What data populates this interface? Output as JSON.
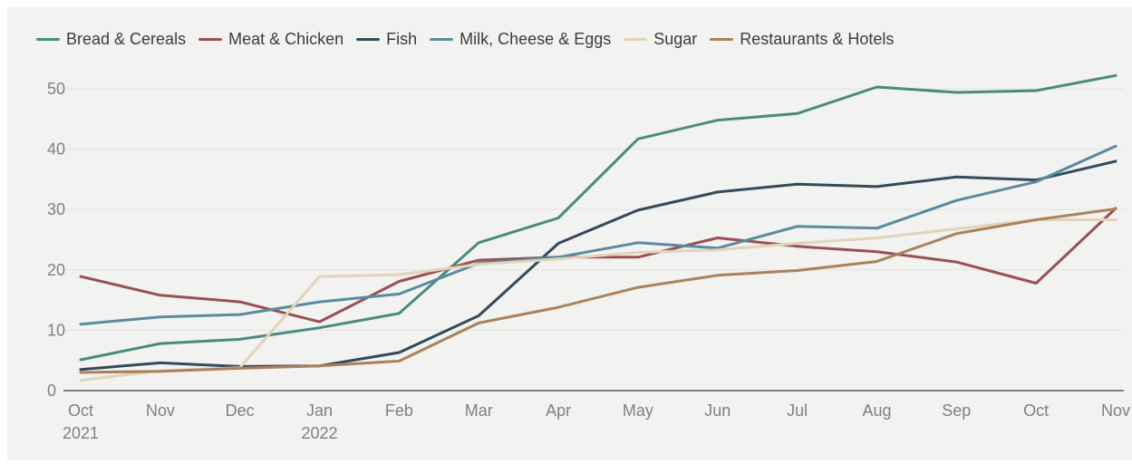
{
  "chart_data": {
    "type": "line",
    "title": "",
    "xlabel": "",
    "ylabel": "",
    "ylim": [
      0,
      53
    ],
    "yticks": [
      0,
      10,
      20,
      30,
      40,
      50
    ],
    "grid": true,
    "legend_position": "top-left",
    "categories": [
      "Oct",
      "Nov",
      "Dec",
      "Jan",
      "Feb",
      "Mar",
      "Apr",
      "May",
      "Jun",
      "Jul",
      "Aug",
      "Sep",
      "Oct",
      "Nov"
    ],
    "category_sublabels": [
      "2021",
      "",
      "",
      "2022",
      "",
      "",
      "",
      "",
      "",
      "",
      "",
      "",
      "",
      ""
    ],
    "series": [
      {
        "name": "Bread & Cereals",
        "color": "#4a8a7e",
        "values": [
          5.1,
          7.8,
          8.5,
          10.4,
          12.8,
          24.5,
          28.6,
          41.7,
          44.8,
          45.9,
          50.3,
          49.4,
          49.7,
          52.2
        ]
      },
      {
        "name": "Meat & Chicken",
        "color": "#9a4f55",
        "values": [
          18.9,
          15.8,
          14.7,
          11.4,
          18.1,
          21.6,
          22.1,
          22.1,
          25.3,
          23.9,
          23.0,
          21.3,
          17.8,
          30.2
        ]
      },
      {
        "name": "Fish",
        "color": "#34495a",
        "values": [
          3.5,
          4.6,
          4.0,
          4.1,
          6.3,
          12.4,
          24.4,
          29.9,
          32.9,
          34.2,
          33.8,
          35.4,
          34.9,
          38.0
        ]
      },
      {
        "name": "Milk, Cheese & Eggs",
        "color": "#5a8a9e",
        "values": [
          11.0,
          12.2,
          12.6,
          14.7,
          16.0,
          21.1,
          22.1,
          24.5,
          23.6,
          27.2,
          26.9,
          31.5,
          34.6,
          40.5
        ]
      },
      {
        "name": "Sugar",
        "color": "#e1d4b8",
        "values": [
          1.7,
          3.3,
          3.8,
          18.9,
          19.2,
          20.9,
          21.8,
          22.9,
          23.3,
          24.4,
          25.3,
          26.8,
          28.3,
          28.3
        ]
      },
      {
        "name": "Restaurants & Hotels",
        "color": "#a9825a",
        "values": [
          3.0,
          3.2,
          3.7,
          4.1,
          4.9,
          11.2,
          13.8,
          17.1,
          19.1,
          19.9,
          21.4,
          26.0,
          28.3,
          30.1
        ]
      }
    ]
  }
}
